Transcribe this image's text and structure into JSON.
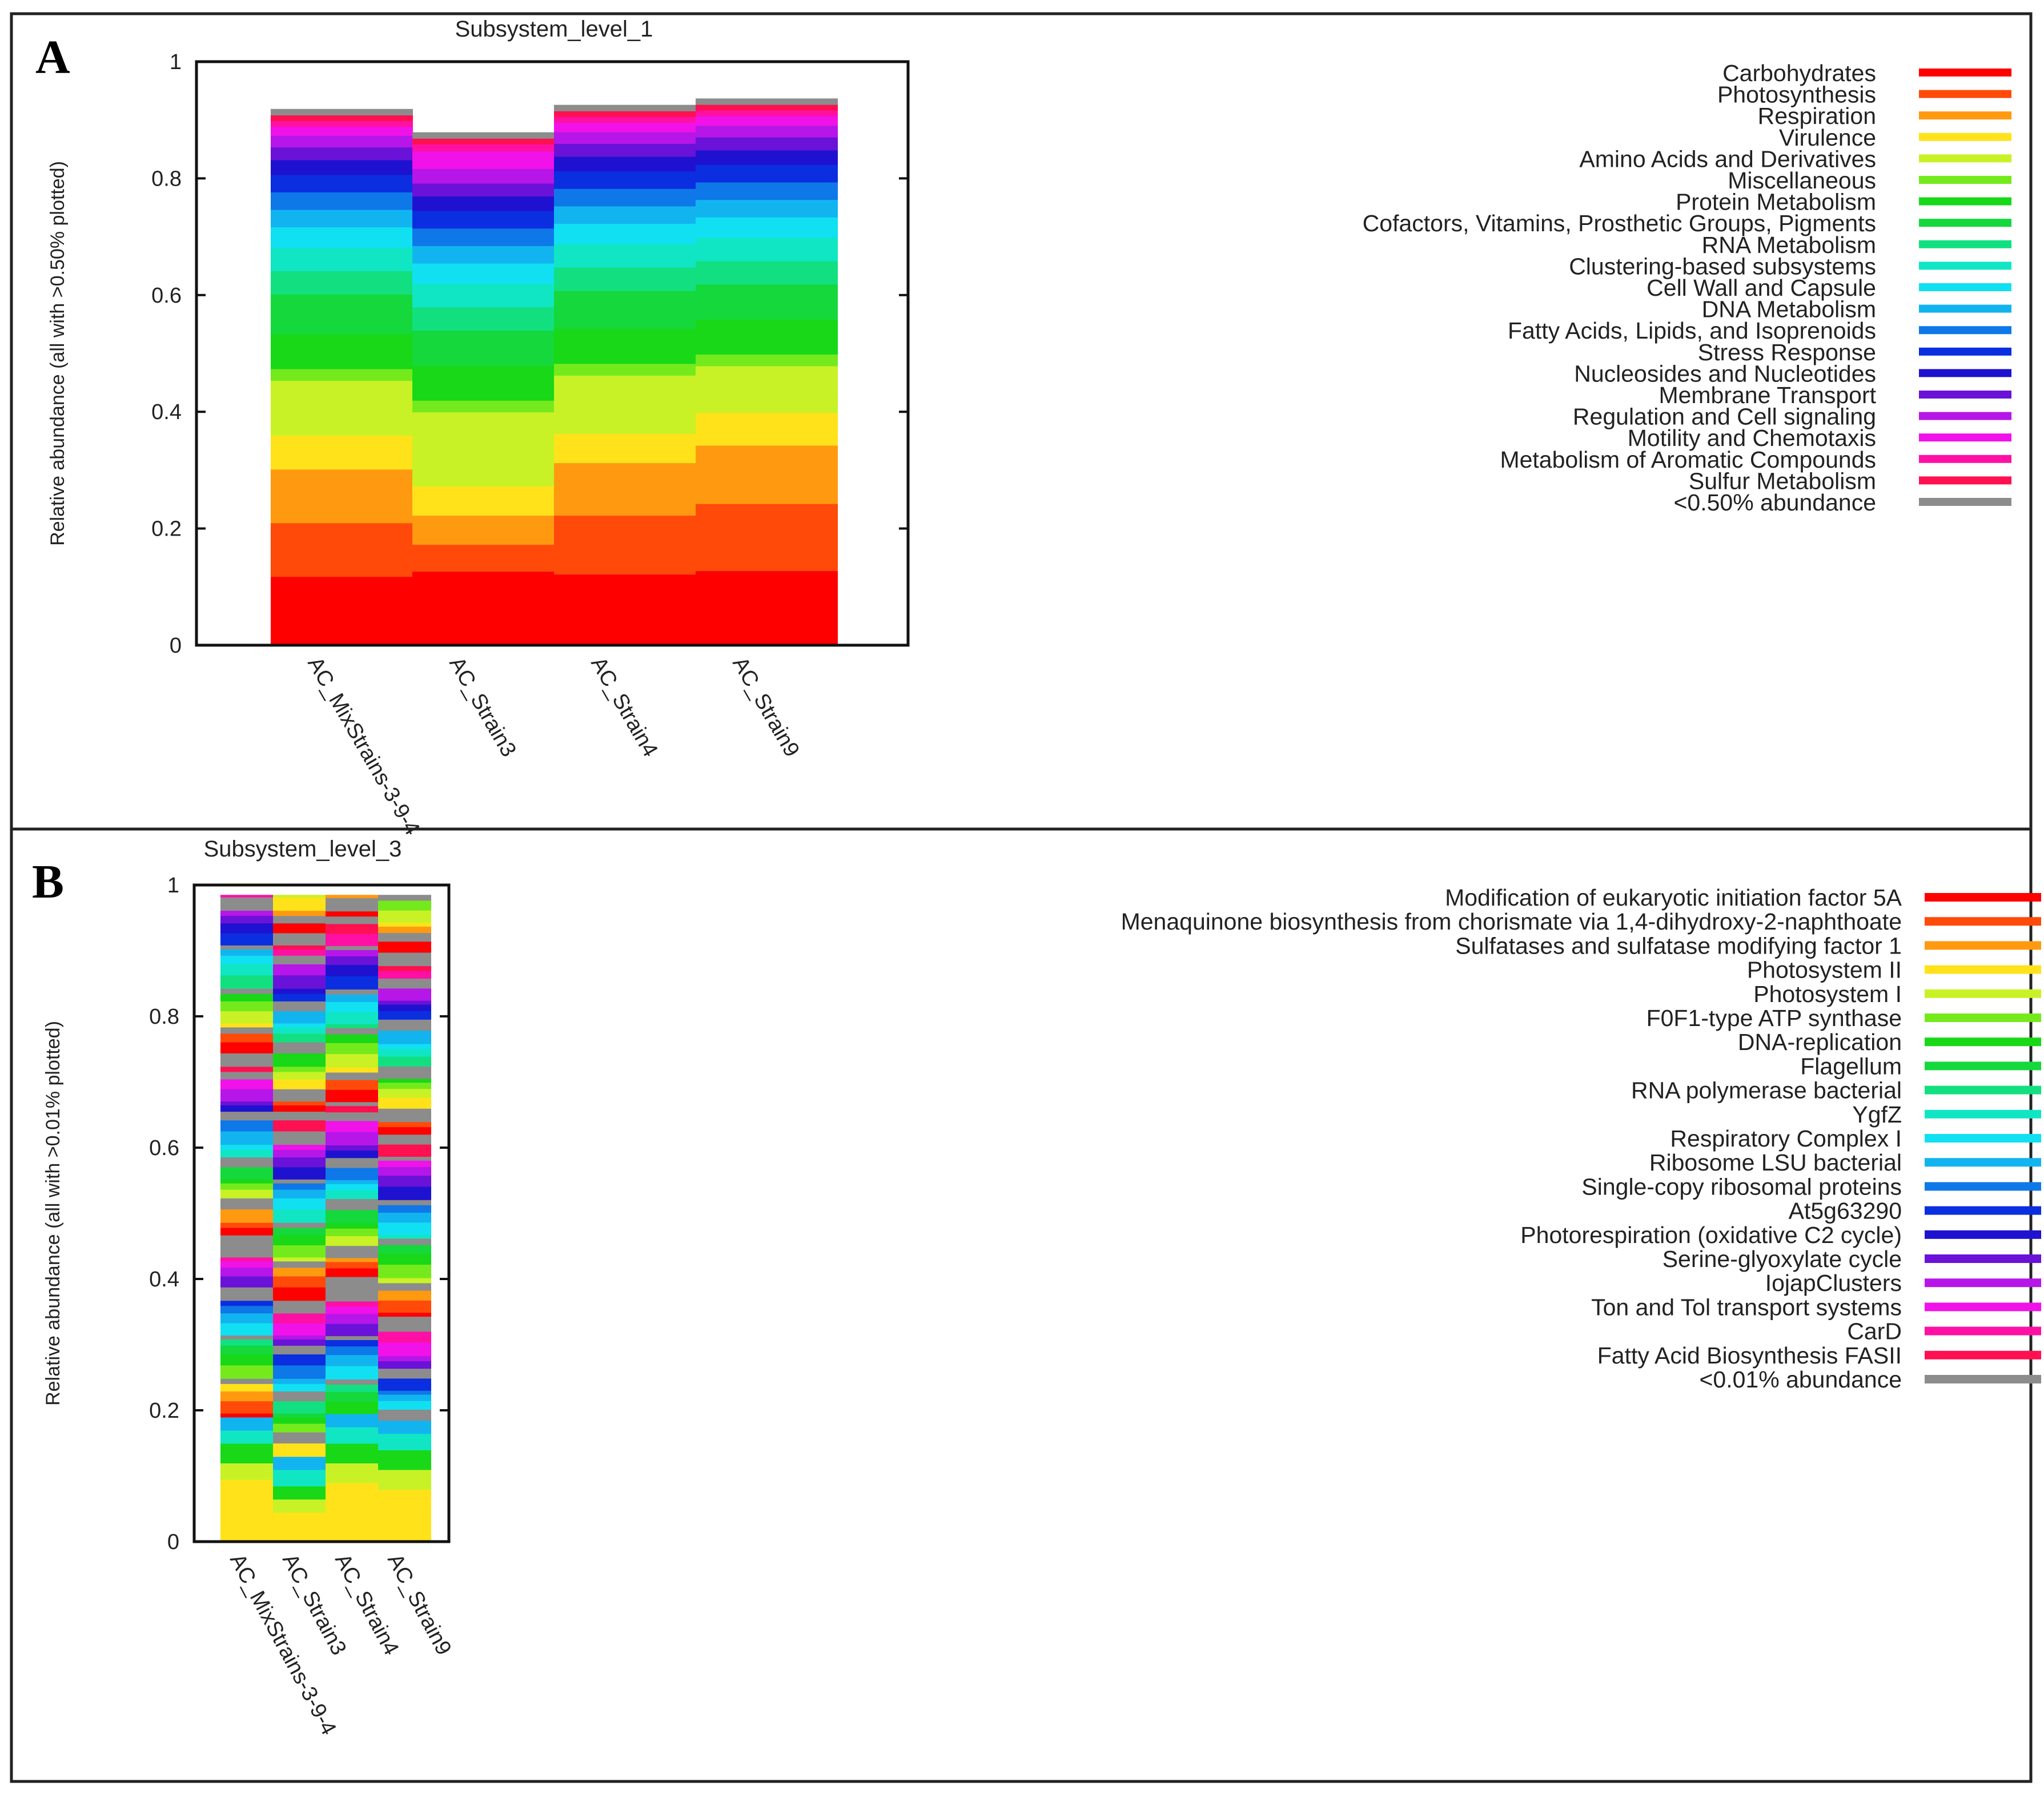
{
  "chart_data": [
    {
      "type": "stacked-bar",
      "panel": "A",
      "title": "Subsystem_level_1",
      "ylabel": "Relative abundance (all with >0.50% plotted)",
      "ylim": [
        0,
        1
      ],
      "yticks": [
        "0",
        "0.2",
        "0.4",
        "0.6",
        "0.8",
        "1"
      ],
      "categories": [
        "AC_MixStrains-3-9-4",
        "AC_Strain3",
        "AC_Strain4",
        "AC_Strain9"
      ],
      "series": [
        {
          "name": "Carbohydrates",
          "color": "#ff0000",
          "values": [
            0.118,
            0.127,
            0.122,
            0.128
          ]
        },
        {
          "name": "Photosynthesis",
          "color": "#ff4a0a",
          "values": [
            0.092,
            0.046,
            0.101,
            0.115
          ]
        },
        {
          "name": "Respiration",
          "color": "#ff9a10",
          "values": [
            0.092,
            0.05,
            0.09,
            0.1
          ]
        },
        {
          "name": "Virulence",
          "color": "#ffe21a",
          "values": [
            0.058,
            0.05,
            0.05,
            0.056
          ]
        },
        {
          "name": "Amino Acids and Derivatives",
          "color": "#c8f226",
          "values": [
            0.094,
            0.127,
            0.1,
            0.08
          ]
        },
        {
          "name": "Miscellaneous",
          "color": "#74ea1c",
          "values": [
            0.02,
            0.02,
            0.02,
            0.02
          ]
        },
        {
          "name": "Protein Metabolism",
          "color": "#18d818",
          "values": [
            0.06,
            0.06,
            0.06,
            0.06
          ]
        },
        {
          "name": "Cofactors, Vitamins, Prosthetic Groups, Pigments",
          "color": "#14d83c",
          "values": [
            0.068,
            0.06,
            0.065,
            0.06
          ]
        },
        {
          "name": "RNA Metabolism",
          "color": "#12e080",
          "values": [
            0.04,
            0.04,
            0.04,
            0.04
          ]
        },
        {
          "name": "Clustering-based subsystems",
          "color": "#10e6c4",
          "values": [
            0.04,
            0.04,
            0.04,
            0.04
          ]
        },
        {
          "name": "Cell Wall and Capsule",
          "color": "#10e0f2",
          "values": [
            0.035,
            0.035,
            0.035,
            0.035
          ]
        },
        {
          "name": "DNA Metabolism",
          "color": "#12b4f0",
          "values": [
            0.03,
            0.03,
            0.03,
            0.03
          ]
        },
        {
          "name": "Fatty Acids, Lipids, and Isoprenoids",
          "color": "#0e78e8",
          "values": [
            0.03,
            0.03,
            0.03,
            0.03
          ]
        },
        {
          "name": "Stress Response",
          "color": "#0a2ee0",
          "values": [
            0.03,
            0.03,
            0.03,
            0.03
          ]
        },
        {
          "name": "Nucleosides and Nucleotides",
          "color": "#1e12d0",
          "values": [
            0.025,
            0.025,
            0.025,
            0.025
          ]
        },
        {
          "name": "Membrane Transport",
          "color": "#6a12d8",
          "values": [
            0.022,
            0.022,
            0.022,
            0.022
          ]
        },
        {
          "name": "Regulation and Cell signaling",
          "color": "#b616e8",
          "values": [
            0.02,
            0.025,
            0.02,
            0.02
          ]
        },
        {
          "name": "Motility and Chemotaxis",
          "color": "#f012e8",
          "values": [
            0.015,
            0.03,
            0.016,
            0.016
          ]
        },
        {
          "name": "Metabolism of Aromatic Compounds",
          "color": "#ff10a4",
          "values": [
            0.01,
            0.012,
            0.01,
            0.01
          ]
        },
        {
          "name": "Sulfur Metabolism",
          "color": "#ff1050",
          "values": [
            0.01,
            0.01,
            0.01,
            0.01
          ]
        },
        {
          "name": "<0.50% abundance",
          "color": "#8c8c8c",
          "values": [
            0.01,
            0.01,
            0.01,
            0.01
          ]
        }
      ]
    },
    {
      "type": "stacked-bar",
      "panel": "B",
      "title": "Subsystem_level_3",
      "ylabel": "Relative abundance (all with >0.01% plotted)",
      "ylim": [
        0,
        1
      ],
      "yticks": [
        "0",
        "0.2",
        "0.4",
        "0.6",
        "0.8",
        "1"
      ],
      "categories": [
        "AC_MixStrains-3-9-4",
        "AC_Strain3",
        "AC_Strain4",
        "AC_Strain9"
      ],
      "legend_items": [
        {
          "name": "Modification of eukaryotic initiation factor 5A",
          "color": "#ff0000"
        },
        {
          "name": "Menaquinone biosynthesis from chorismate via 1,4-dihydroxy-2-naphthoate",
          "color": "#ff4a0a"
        },
        {
          "name": "Sulfatases and sulfatase modifying factor 1",
          "color": "#ff9a10"
        },
        {
          "name": "Photosystem II",
          "color": "#ffe21a"
        },
        {
          "name": "Photosystem I",
          "color": "#c8f226"
        },
        {
          "name": "F0F1-type ATP synthase",
          "color": "#74ea1c"
        },
        {
          "name": "DNA-replication",
          "color": "#18d818"
        },
        {
          "name": "Flagellum",
          "color": "#14d83c"
        },
        {
          "name": "RNA polymerase bacterial",
          "color": "#12e080"
        },
        {
          "name": "YgfZ",
          "color": "#10e6c4"
        },
        {
          "name": "Respiratory Complex I",
          "color": "#10e0f2"
        },
        {
          "name": "Ribosome LSU bacterial",
          "color": "#12b4f0"
        },
        {
          "name": "Single-copy ribosomal proteins",
          "color": "#0e78e8"
        },
        {
          "name": "At5g63290",
          "color": "#0a2ee0"
        },
        {
          "name": "Photorespiration (oxidative C2 cycle)",
          "color": "#1e12d0"
        },
        {
          "name": "Serine-glyoxylate cycle",
          "color": "#6a12d8"
        },
        {
          "name": "IojapClusters",
          "color": "#b616e8"
        },
        {
          "name": "Ton and Tol transport systems",
          "color": "#f012e8"
        },
        {
          "name": "CarD",
          "color": "#ff10a4"
        },
        {
          "name": "Fatty Acid Biosynthesis FASII",
          "color": "#ff1050"
        },
        {
          "name": "<0.01% abundance",
          "color": "#8c8c8c"
        }
      ],
      "bottom_segments": {
        "note": "approximate heights of the lowest visible bands per sample; remaining stack is many thin bands cycling the legend palette up to 1.0",
        "series": [
          {
            "name": "Photosystem II",
            "color": "#ffe21a",
            "values": [
              0.095,
              0.045,
              0.09,
              0.08
            ]
          },
          {
            "name": "Photosystem I",
            "color": "#c8f226",
            "values": [
              0.025,
              0.02,
              0.03,
              0.03
            ]
          },
          {
            "name": "DNA-replication",
            "color": "#18d818",
            "values": [
              0.03,
              0.02,
              0.03,
              0.03
            ]
          },
          {
            "name": "YgfZ",
            "color": "#10e6c4",
            "values": [
              0.02,
              0.025,
              0.025,
              0.025
            ]
          },
          {
            "name": "Ribosome LSU bacterial",
            "color": "#12b4f0",
            "values": [
              0.02,
              0.02,
              0.02,
              0.02
            ]
          }
        ]
      }
    }
  ],
  "labels": {
    "panel_a_letter": "A",
    "panel_b_letter": "B"
  }
}
